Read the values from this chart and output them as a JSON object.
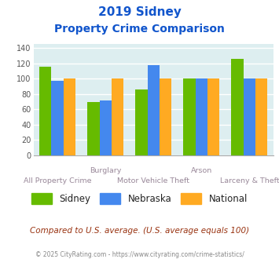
{
  "title_line1": "2019 Sidney",
  "title_line2": "Property Crime Comparison",
  "categories": [
    "All Property Crime",
    "Burglary",
    "Motor Vehicle Theft",
    "Arson",
    "Larceny & Theft"
  ],
  "sidney": [
    115,
    69,
    86,
    100,
    126
  ],
  "nebraska": [
    97,
    72,
    118,
    100,
    100
  ],
  "national": [
    100,
    100,
    100,
    100,
    100
  ],
  "sidney_color": "#66bb00",
  "nebraska_color": "#4488ee",
  "national_color": "#ffaa22",
  "ylim": [
    0,
    145
  ],
  "yticks": [
    0,
    20,
    40,
    60,
    80,
    100,
    120,
    140
  ],
  "background_color": "#ddeef0",
  "grid_color": "#ffffff",
  "title_color": "#1155cc",
  "footer_text": "Compared to U.S. average. (U.S. average equals 100)",
  "copyright_text": "© 2025 CityRating.com - https://www.cityrating.com/crime-statistics/",
  "legend_labels": [
    "Sidney",
    "Nebraska",
    "National"
  ],
  "top_xlabels": {
    "1": "Burglary",
    "3": "Arson"
  },
  "bottom_xlabels": {
    "0": "All Property Crime",
    "2": "Motor Vehicle Theft",
    "4": "Larceny & Theft"
  },
  "bar_width": 0.25,
  "label_color": "#998899"
}
